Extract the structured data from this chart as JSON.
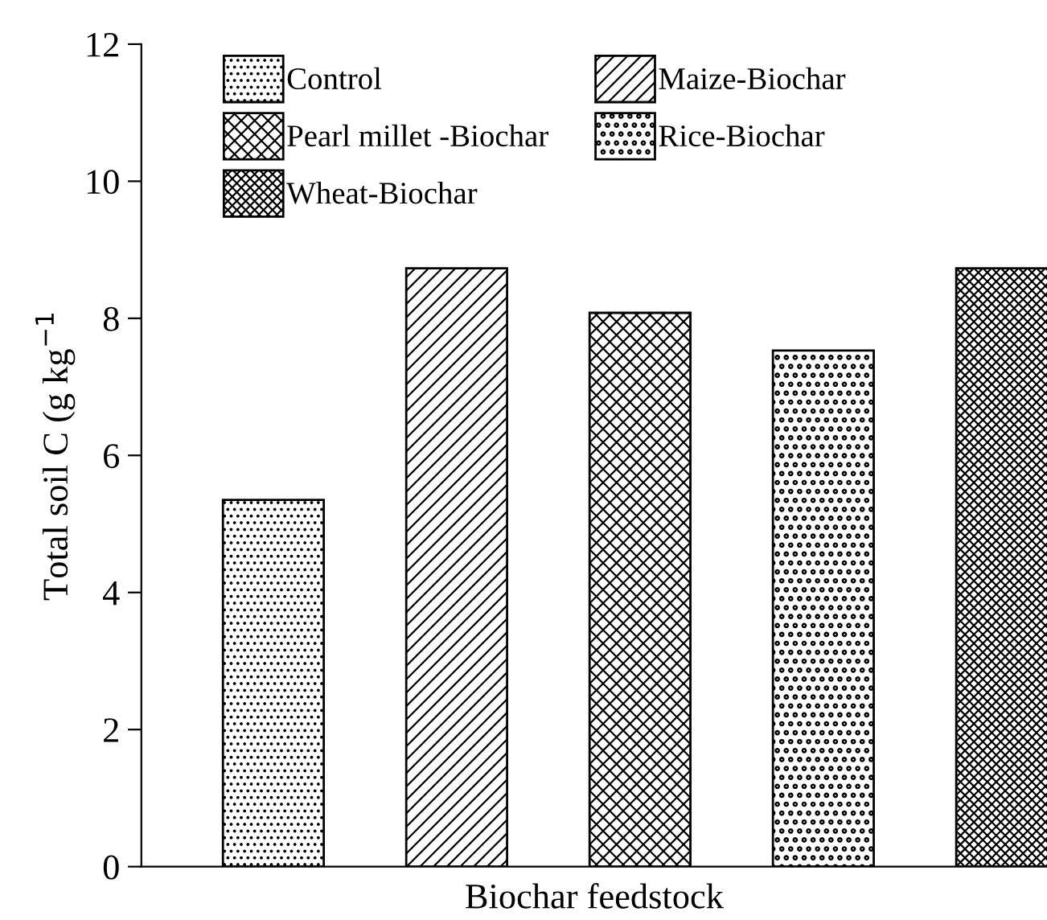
{
  "chart_data": {
    "type": "bar",
    "xlabel": "Biochar feedstock",
    "ylabel": "Total soil C (g kg$^{−1}$",
    "categories": [
      null,
      null,
      null,
      null,
      null
    ],
    "series": [
      {
        "name": "Control",
        "color": "#000000",
        "values": [
          5.35,
          null,
          null,
          null,
          null
        ]
      },
      {
        "name": "Maize-Biochar",
        "color": "#000000",
        "values": [
          null,
          8.73,
          null,
          null,
          null
        ]
      },
      {
        "name": "Pearl millet -Biochar",
        "color": "#000000",
        "values": [
          null,
          null,
          8.08,
          null,
          null
        ]
      },
      {
        "name": "Rice-Biochar",
        "color": "#000000",
        "values": [
          null,
          null,
          null,
          7.53,
          null
        ]
      },
      {
        "name": "Wheat-Biochar",
        "color": "#000000",
        "values": [
          null,
          null,
          null,
          null,
          8.73
        ]
      }
    ],
    "ylim": [
      0,
      12
    ],
    "yticks": [
      0,
      2,
      4,
      6,
      8,
      10,
      12
    ],
    "grid": false,
    "legend": "top left"
  }
}
